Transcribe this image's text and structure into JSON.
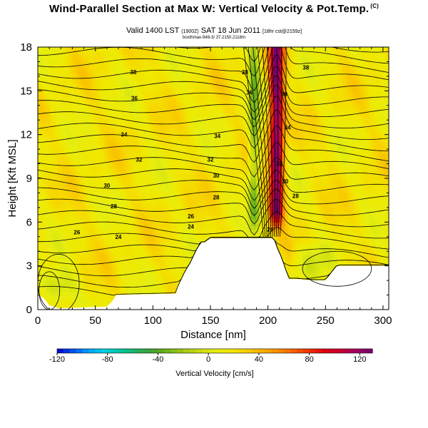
{
  "header": {
    "title": "Wind-Parallel Section at Max W: Vertical Velocity & Pot.Temp.",
    "copyright_mark": "(C)",
    "valid_line": "Valid 1400 LST",
    "valid_small1": "(1900Z)",
    "valid_date": "SAT 18 Jun 2011",
    "valid_small2": "[18hr cst@2159z]",
    "subline": "boxthmax-948-3/ 37.2150.2118m"
  },
  "chart_data": {
    "type": "heatmap",
    "title": "Wind-Parallel Section at Max W: Vertical Velocity & Pot.Temp.",
    "xlabel": "Distance [nm]",
    "ylabel": "Height [Kft MSL]",
    "xlim": [
      0,
      305
    ],
    "ylim": [
      0,
      18
    ],
    "xticks": [
      "0",
      "50",
      "100",
      "150",
      "200",
      "250",
      "300"
    ],
    "yticks": [
      "0",
      "3",
      "6",
      "9",
      "12",
      "15",
      "18"
    ],
    "colorbar": {
      "label": "Vertical Velocity [cm/s]",
      "range": [
        -120,
        130
      ],
      "tick_labels": [
        "-120",
        "-80",
        "-40",
        "0",
        "40",
        "80",
        "120"
      ],
      "colors": [
        "#0000cd",
        "#0050f0",
        "#00a0ff",
        "#00d0e0",
        "#00c8a0",
        "#20b060",
        "#40a030",
        "#70b418",
        "#a0c818",
        "#c8dc10",
        "#e6ee10",
        "#f0e800",
        "#f8d000",
        "#f8b000",
        "#f89000",
        "#f86000",
        "#f03000",
        "#e00010",
        "#c80030",
        "#a00060",
        "#780070"
      ]
    },
    "terrain": {
      "x": [
        0,
        5,
        10,
        18,
        20,
        60,
        65,
        68,
        120,
        122,
        125,
        128,
        132,
        135,
        138,
        142,
        145,
        150,
        155,
        160,
        190,
        205,
        208,
        212,
        215,
        218,
        222,
        225,
        240,
        250,
        255,
        260,
        305
      ],
      "height": [
        1.0,
        0.8,
        0.3,
        0.1,
        0.1,
        0.2,
        0.6,
        1.0,
        1.1,
        1.6,
        2.1,
        2.6,
        3.1,
        3.6,
        4.1,
        4.6,
        4.6,
        4.9,
        4.9,
        4.9,
        4.9,
        4.9,
        4.2,
        3.5,
        2.8,
        2.1,
        2.1,
        2.1,
        2.0,
        2.0,
        2.5,
        3.0,
        3.0
      ]
    },
    "updraft_core": {
      "x_range": [
        197,
        218
      ],
      "max_velocity": 110
    },
    "downdraft_core": {
      "x_range": [
        180,
        196
      ],
      "min_velocity": -45
    },
    "theta_contours": [
      {
        "value": 24,
        "base_km": 5.2,
        "label": "24"
      },
      {
        "value": 26,
        "base_km": 7.0,
        "label": "26"
      },
      {
        "value": 28,
        "base_km": 8.6,
        "label": "28"
      },
      {
        "value": 30,
        "base_km": 9.6,
        "label": "30"
      },
      {
        "value": 32,
        "base_km": 11.2,
        "label": "32"
      },
      {
        "value": 34,
        "base_km": 12.6,
        "label": "34"
      },
      {
        "value": 36,
        "base_km": 14.6,
        "label": "36"
      },
      {
        "value": 38,
        "base_km": 16.6,
        "label": "38"
      }
    ],
    "extra_labels": [
      "26",
      "36",
      "24",
      "34",
      "32",
      "30",
      "28",
      "38",
      "36",
      "34"
    ]
  }
}
